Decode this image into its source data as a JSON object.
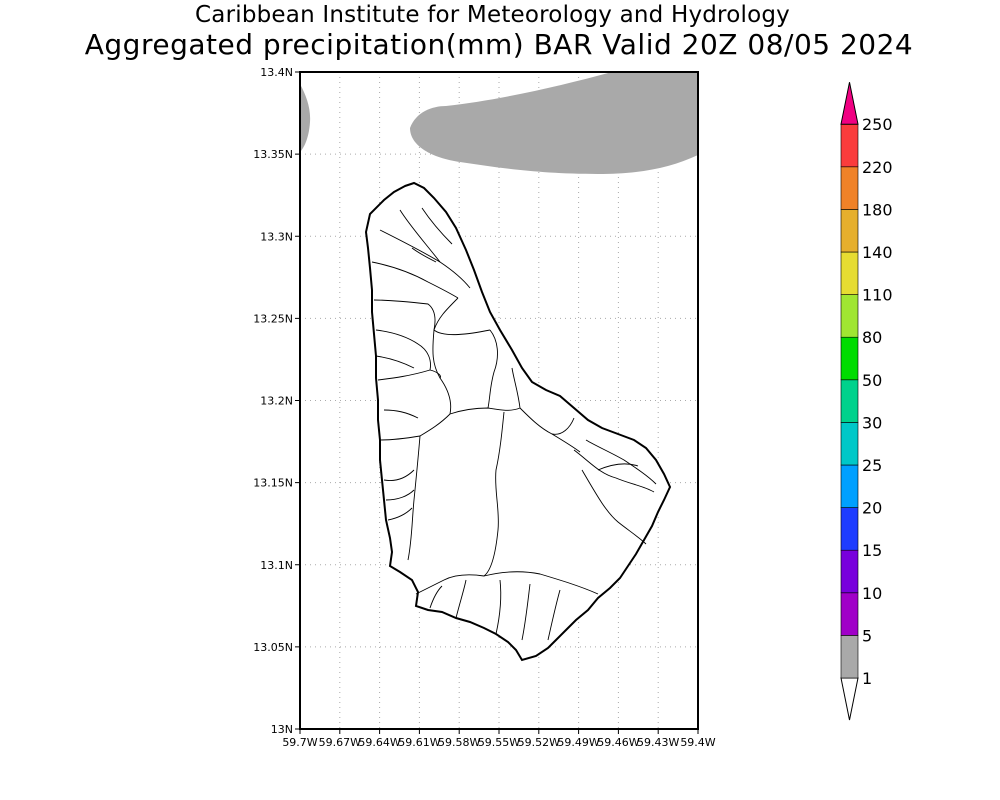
{
  "title": {
    "line1": "Caribbean Institute for Meteorology and Hydrology",
    "line2": "Aggregated precipitation(mm) BAR Valid 20Z 08/05 2024"
  },
  "map": {
    "region": "Barbados",
    "lon_range": [
      -59.7,
      -59.4
    ],
    "lat_range": [
      13.0,
      13.4
    ],
    "x_tick_labels": [
      "59.7W",
      "59.67W",
      "59.64W",
      "59.61W",
      "59.58W",
      "59.55W",
      "59.52W",
      "59.49W",
      "59.46W",
      "59.43W",
      "59.4W"
    ],
    "y_tick_labels": [
      "13.4N",
      "13.35N",
      "13.3N",
      "13.25N",
      "13.2N",
      "13.15N",
      "13.1N",
      "13.05N",
      "13N"
    ],
    "grid": true,
    "shaded_class": "1-5 mm",
    "shaded_color": "#a9a9a9"
  },
  "colorbar": {
    "levels": [
      "1",
      "5",
      "10",
      "15",
      "20",
      "25",
      "30",
      "50",
      "80",
      "110",
      "140",
      "180",
      "220",
      "250"
    ],
    "colors": [
      "#a9a9a9",
      "#a000c8",
      "#7800dc",
      "#1e3cff",
      "#00a0ff",
      "#00c8c8",
      "#00d28c",
      "#00dc00",
      "#a0e632",
      "#e6dc32",
      "#e6af2d",
      "#f08228",
      "#fa3c3c",
      "#f00082"
    ],
    "below_color": "#ffffff"
  }
}
